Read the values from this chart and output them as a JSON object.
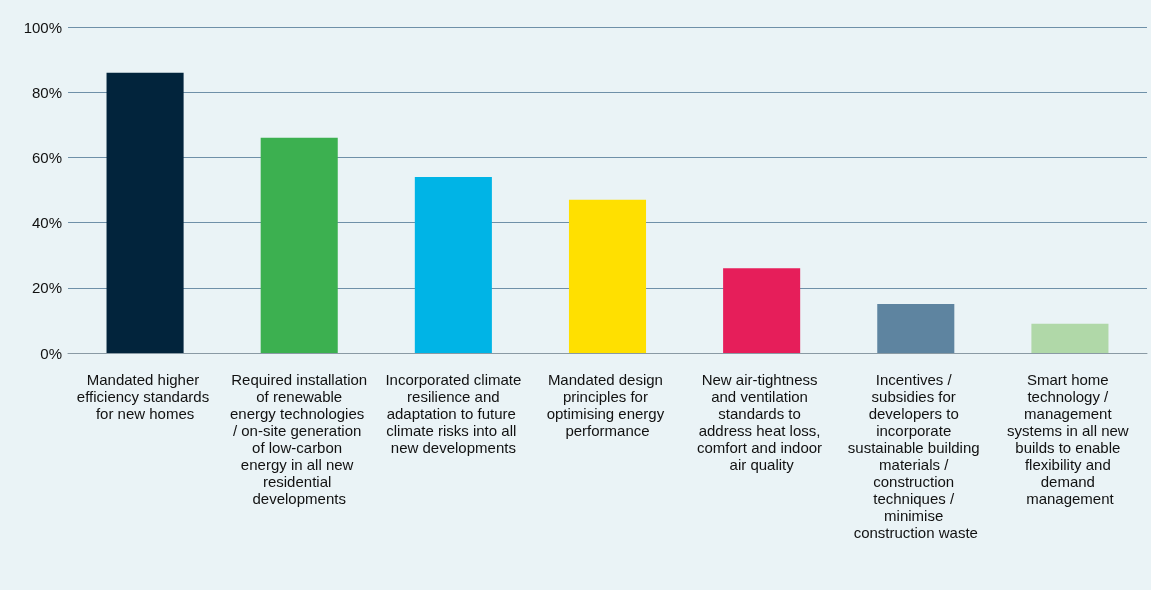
{
  "chart_data": {
    "type": "bar",
    "categories": [
      "Mandated higher efficiency standards for new homes",
      "Required installation of renewable energy technologies / on-site generation of low-carbon energy in all new residential developments",
      "Incorporated climate resilience and adaptation to future climate risks into all new developments",
      "Mandated design principles for optimising energy performance",
      "New air-tightness and ventilation standards to address heat loss, comfort and indoor air quality",
      "Incentives / subsidies for developers to incorporate sustainable building materials / construction techniques / minimise construction waste",
      "Smart home technology / management systems in all new builds to enable flexibility and demand management"
    ],
    "values": [
      86,
      66,
      54,
      47,
      26,
      15,
      9
    ],
    "colors": [
      "#02243c",
      "#3cb050",
      "#00b4e6",
      "#ffe000",
      "#e61e5a",
      "#5e84a0",
      "#b0d8a8"
    ],
    "ylim": [
      0,
      100
    ],
    "yticks": [
      {
        "value": 0,
        "label": "0%"
      },
      {
        "value": 20,
        "label": "20%"
      },
      {
        "value": 40,
        "label": "40%"
      },
      {
        "value": 60,
        "label": "60%"
      },
      {
        "value": 80,
        "label": "80%"
      },
      {
        "value": 100,
        "label": "100%"
      }
    ],
    "grid": "y"
  }
}
